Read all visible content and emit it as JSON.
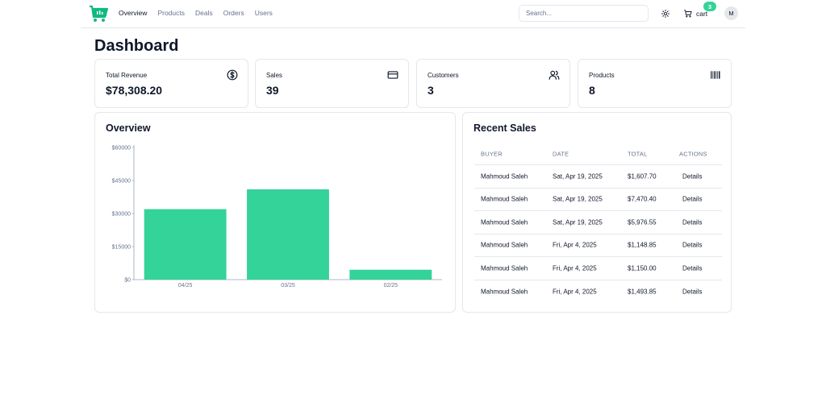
{
  "header": {
    "nav": [
      "Overview",
      "Products",
      "Deals",
      "Orders",
      "Users"
    ],
    "search_placeholder": "Search...",
    "cart_label": "cart",
    "cart_count": "3",
    "avatar_initial": "M"
  },
  "page_title": "Dashboard",
  "stats": [
    {
      "label": "Total Revenue",
      "value": "$78,308.20",
      "icon": "dollar-circle-icon"
    },
    {
      "label": "Sales",
      "value": "39",
      "icon": "credit-card-icon"
    },
    {
      "label": "Customers",
      "value": "3",
      "icon": "users-icon"
    },
    {
      "label": "Products",
      "value": "8",
      "icon": "barcode-icon"
    }
  ],
  "overview": {
    "title": "Overview"
  },
  "chart_data": {
    "type": "bar",
    "categories": [
      "04/25",
      "03/25",
      "02/25"
    ],
    "values": [
      32000,
      41000,
      4500
    ],
    "yticks": [
      "$0",
      "$15000",
      "$30000",
      "$45000",
      "$60000"
    ],
    "ylim": [
      0,
      60000
    ],
    "color": "#34d399"
  },
  "recent_sales": {
    "title": "Recent Sales",
    "columns": [
      "BUYER",
      "DATE",
      "TOTAL",
      "ACTIONS"
    ],
    "rows": [
      {
        "buyer": "Mahmoud Saleh",
        "date": "Sat, Apr 19, 2025",
        "total": "$1,607.70",
        "action": "Details"
      },
      {
        "buyer": "Mahmoud Saleh",
        "date": "Sat, Apr 19, 2025",
        "total": "$7,470.40",
        "action": "Details"
      },
      {
        "buyer": "Mahmoud Saleh",
        "date": "Sat, Apr 19, 2025",
        "total": "$5,976.55",
        "action": "Details"
      },
      {
        "buyer": "Mahmoud Saleh",
        "date": "Fri, Apr 4, 2025",
        "total": "$1,148.85",
        "action": "Details"
      },
      {
        "buyer": "Mahmoud Saleh",
        "date": "Fri, Apr 4, 2025",
        "total": "$1,150.00",
        "action": "Details"
      },
      {
        "buyer": "Mahmoud Saleh",
        "date": "Fri, Apr 4, 2025",
        "total": "$1,493.85",
        "action": "Details"
      }
    ]
  },
  "colors": {
    "accent": "#34d399",
    "logo": "#10b981",
    "border": "#e5e7eb",
    "muted": "#64748b"
  }
}
